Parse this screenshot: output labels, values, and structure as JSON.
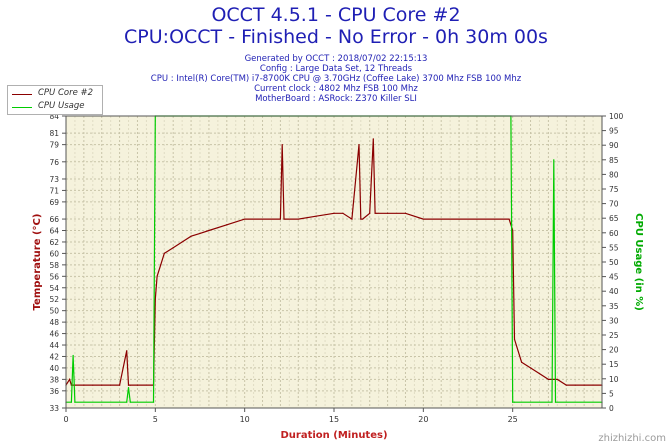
{
  "header": {
    "title_line1": "OCCT 4.5.1 - CPU Core #2",
    "title_line2": "CPU:OCCT - Finished - No Error - 0h 30m 00s",
    "info_lines": [
      "Generated by OCCT : 2018/07/02 22:15:13",
      "Config : Large Data Set, 12 Threads",
      "CPU : Intel(R) Core(TM) i7-8700K CPU @ 3.70GHz (Coffee Lake) 3700 Mhz FSB 100 Mhz",
      "Current clock : 4802 Mhz FSB 100 Mhz",
      "MotherBoard : ASRock: Z370 Killer SLI"
    ]
  },
  "watermark": "zhizhizhi.com",
  "colors": {
    "cpu_core_line": "#8b0000",
    "cpu_usage_line": "#00cc00",
    "plot_background": "#f5f2dc",
    "title": "#1f1fb4",
    "left_axis_label": "#a01010",
    "right_axis_label": "#00aa00",
    "x_axis_label": "#c02020"
  },
  "chart_data": {
    "type": "line",
    "xlabel": "Duration (Minutes)",
    "ylabel_left": "Temperature (°C)",
    "ylabel_right": "CPU Usage (in %)",
    "xlim": [
      0,
      30
    ],
    "ylim_left": [
      33,
      84
    ],
    "ylim_right": [
      0,
      100
    ],
    "x_ticks": [
      0,
      5,
      10,
      15,
      20,
      25
    ],
    "y_left_ticks": [
      33,
      36,
      38,
      40,
      42,
      44,
      46,
      48,
      50,
      52,
      54,
      56,
      58,
      60,
      62,
      64,
      66,
      69,
      71,
      73,
      76,
      79,
      81,
      84
    ],
    "y_right_ticks": [
      0,
      5,
      10,
      15,
      20,
      25,
      30,
      35,
      40,
      45,
      50,
      55,
      60,
      65,
      70,
      75,
      80,
      85,
      90,
      95,
      100
    ],
    "grid": true,
    "legend_position": "top-left",
    "series": [
      {
        "name": "CPU Core #2",
        "axis": "left",
        "x": [
          0,
          0.2,
          0.3,
          0.5,
          1,
          1.5,
          2,
          2.5,
          3,
          3.4,
          3.5,
          3.6,
          4,
          4.9,
          5.0,
          5.1,
          5.3,
          5.5,
          6,
          6.5,
          7,
          7.5,
          8,
          9,
          10,
          11,
          12,
          12.1,
          12.2,
          12.3,
          13,
          14,
          15,
          15.5,
          16,
          16.4,
          16.5,
          16.6,
          17,
          17.2,
          17.3,
          17.4,
          18,
          19,
          20,
          21,
          22,
          23,
          24,
          24.8,
          25.0,
          25.1,
          25.5,
          26,
          26.5,
          27,
          27.5,
          28,
          28.5,
          29,
          30
        ],
        "y": [
          37,
          38,
          37,
          37,
          37,
          37,
          37,
          37,
          37,
          43,
          37,
          37,
          37,
          37,
          52,
          56,
          58,
          60,
          61,
          62,
          63,
          63.5,
          64,
          65,
          66,
          66,
          66,
          79,
          66,
          66,
          66,
          66.5,
          67,
          67,
          66,
          79,
          66,
          66,
          67,
          80,
          67,
          67,
          67,
          67,
          66,
          66,
          66,
          66,
          66,
          66,
          64,
          45,
          41,
          40,
          39,
          38,
          38,
          37,
          37,
          37,
          37
        ]
      },
      {
        "name": "CPU Usage",
        "axis": "right",
        "x": [
          0,
          0.3,
          0.4,
          0.5,
          3.4,
          3.5,
          3.6,
          4.9,
          5.0,
          24.9,
          25.0,
          25.1,
          27.2,
          27.3,
          27.4,
          30
        ],
        "y": [
          2,
          2,
          18,
          2,
          2,
          7,
          2,
          2,
          100,
          100,
          2,
          2,
          2,
          85,
          2,
          2
        ]
      }
    ]
  }
}
